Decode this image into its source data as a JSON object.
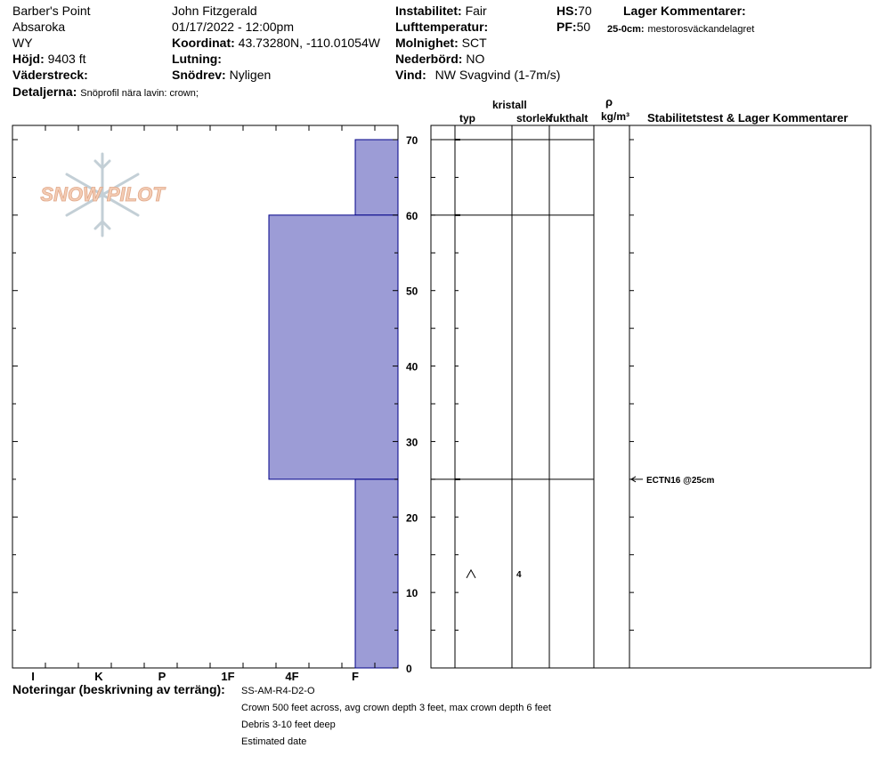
{
  "header": {
    "location": "Barber's Point",
    "range": "Absaroka",
    "state": "WY",
    "elevation_label": "Höjd:",
    "elevation_value": "9403 ft",
    "aspect_label": "Väderstreck:",
    "aspect_value": "",
    "observer": "John Fitzgerald",
    "datetime": "01/17/2022 - 12:00pm",
    "coord_label": "Koordinat:",
    "coord_value": "43.73280N, -110.01054W",
    "slope_label": "Lutning:",
    "slope_value": "",
    "wind_loading_label": "Snödrev:",
    "wind_loading_value": "Nyligen",
    "instability_label": "Instabilitet:",
    "instability_value": "Fair",
    "air_temp_label": "Lufttemperatur:",
    "air_temp_value": "",
    "sky_label": "Molnighet:",
    "sky_value": "SCT",
    "precip_label": "Nederbörd:",
    "precip_value": "NO",
    "wind_label": "Vind:",
    "wind_value": "NW Svagvind (1-7m/s)",
    "hs_label": "HS:",
    "hs_value": "70",
    "pf_label": "PF:",
    "pf_value": "50",
    "layer_comments_label": "Lager Kommentarer:",
    "layer_comment_depth": "25-0cm:",
    "layer_comment_text": "mestorosväckandelagret",
    "details_label": "Detaljerna:",
    "details_value": "Snöprofil nära lavin: crown;"
  },
  "logo": {
    "text": "SNOW PILOT"
  },
  "columns": {
    "type": "typ",
    "crystal": "kristall",
    "size": "storlek",
    "moisture": "fukthalt",
    "density_symbol": "ρ",
    "density_unit": "kg/m³",
    "stability": "Stabilitetstest & Lager Kommentarer"
  },
  "notes": {
    "label": "Noteringar (beskrivning av terräng):",
    "lines": [
      "SS-AM-R4-D2-O",
      "Crown 500 feet across, avg crown depth 3 feet, max crown depth 6 feet",
      "Debris 3-10 feet deep",
      "Estimated date"
    ]
  },
  "chart_data": {
    "type": "bar",
    "title": "",
    "hardness_scale": [
      "I",
      "K",
      "P",
      "1F",
      "4F",
      "F"
    ],
    "height_ticks": [
      0,
      10,
      20,
      30,
      40,
      50,
      60,
      70
    ],
    "ylim": [
      0,
      70
    ],
    "layers": [
      {
        "top": 70,
        "bottom": 60,
        "hardness": "F"
      },
      {
        "top": 60,
        "bottom": 25,
        "hardness": "4F-"
      },
      {
        "top": 25,
        "bottom": 0,
        "hardness": "F"
      }
    ],
    "layer_boundaries": [
      70,
      60,
      25
    ],
    "grain": {
      "height": 12.5,
      "type_symbol": "^",
      "size": "4"
    },
    "stability_tests": [
      {
        "height": 25,
        "label": "ECTN16 @25cm"
      }
    ],
    "colors": {
      "layer_fill": "#9c9cd6",
      "layer_stroke": "#000088"
    }
  }
}
